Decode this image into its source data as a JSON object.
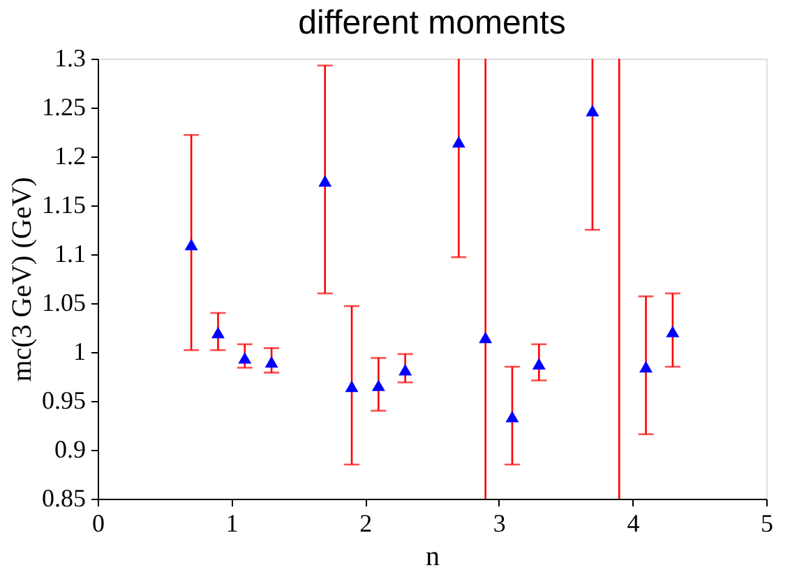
{
  "chart_data": {
    "type": "scatter",
    "title": "different moments",
    "xlabel": "n",
    "ylabel": "mc(3 GeV) (GeV)",
    "x": [
      0.7,
      0.9,
      1.1,
      1.3,
      1.7,
      1.9,
      2.1,
      2.3,
      2.7,
      2.9,
      3.1,
      3.3,
      3.7,
      4.1,
      4.3
    ],
    "series": [
      {
        "color": "#0000ff",
        "values": [
          1.11,
          1.02,
          0.994,
          0.99,
          1.175,
          0.965,
          0.966,
          0.982,
          1.215,
          1.015,
          0.934,
          0.988,
          1.247,
          0.985,
          1.021
        ],
        "errors": [
          [
            1.002,
            1.222
          ],
          [
            1.002,
            1.04
          ],
          [
            0.984,
            1.008
          ],
          [
            0.979,
            1.004
          ],
          [
            1.06,
            1.293
          ],
          [
            0.885,
            1.047
          ],
          [
            0.94,
            0.994
          ],
          [
            0.969,
            0.998
          ],
          [
            1.097,
            1.3
          ],
          [
            0.85,
            1.3
          ],
          [
            0.885,
            0.985
          ],
          [
            0.971,
            1.008
          ],
          [
            1.125,
            1.3
          ],
          [
            0.916,
            1.057
          ],
          [
            0.985,
            1.06
          ]
        ]
      }
    ],
    "ref_lines": [
      {
        "axis": "x",
        "value": 3.9,
        "color": "#ff0000"
      }
    ],
    "marker": "triangle",
    "xlim": [
      0,
      5
    ],
    "xticks": [
      0,
      1,
      2,
      3,
      4,
      5
    ],
    "ylim": [
      0.85,
      1.3
    ],
    "yticks": [
      0.85,
      0.9,
      0.95,
      1,
      1.05,
      1.1,
      1.15,
      1.2,
      1.25,
      1.3
    ],
    "grid": false
  }
}
